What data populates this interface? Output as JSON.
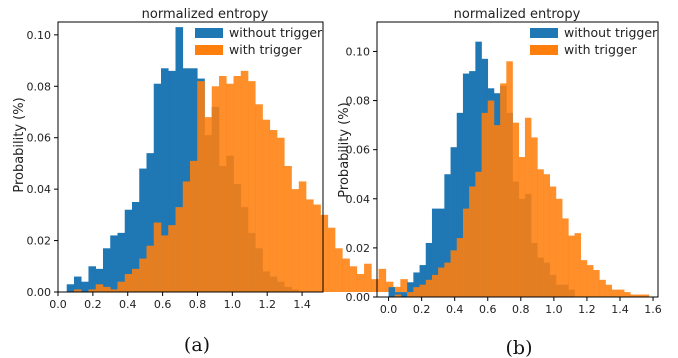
{
  "chart_data": [
    {
      "type": "histogram",
      "title": "normalized entropy",
      "xlabel": "",
      "ylabel": "Probability (%)",
      "xlim": [
        0.0,
        1.52
      ],
      "ylim": [
        0,
        0.105
      ],
      "xticks": [
        "0.0",
        "0.2",
        "0.4",
        "0.6",
        "0.8",
        "1.0",
        "1.2",
        "1.4"
      ],
      "xtick_values": [
        0.0,
        0.2,
        0.4,
        0.6,
        0.8,
        1.0,
        1.2,
        1.4
      ],
      "yticks": [
        "0.00",
        "0.02",
        "0.04",
        "0.06",
        "0.08",
        "0.10"
      ],
      "ytick_values": [
        0,
        0.02,
        0.04,
        0.06,
        0.08,
        0.1
      ],
      "legend_position": "top-right",
      "caption": "(a)",
      "series": [
        {
          "name": "without trigger",
          "color": "#1f77b4",
          "bin_start": 0.05,
          "bin_width": 0.0416,
          "values": [
            0.003,
            0.006,
            0.004,
            0.01,
            0.009,
            0.017,
            0.022,
            0.023,
            0.032,
            0.035,
            0.048,
            0.054,
            0.081,
            0.087,
            0.086,
            0.103,
            0.087,
            0.087,
            0.083,
            0.061,
            0.072,
            0.049,
            0.053,
            0.042,
            0.033,
            0.023,
            0.017,
            0.008,
            0.006,
            0.004,
            0.002,
            0.001
          ]
        },
        {
          "name": "with trigger",
          "color": "#ff7f0e",
          "bin_start": 0.05,
          "bin_width": 0.0416,
          "values": [
            0.0,
            0.001,
            0.0,
            0.001,
            0.003,
            0.002,
            0.001,
            0.004,
            0.007,
            0.009,
            0.013,
            0.018,
            0.027,
            0.022,
            0.026,
            0.033,
            0.043,
            0.051,
            0.082,
            0.068,
            0.08,
            0.084,
            0.081,
            0.084,
            0.086,
            0.082,
            0.073,
            0.067,
            0.063,
            0.06,
            0.049,
            0.04,
            0.043,
            0.036,
            0.034,
            0.03,
            0.025,
            0.017,
            0.013,
            0.01,
            0.007,
            0.011,
            0.005,
            0.009,
            0.004,
            0.002,
            0.005,
            0.003,
            0.0,
            0.003
          ]
        }
      ]
    },
    {
      "type": "histogram",
      "title": "normalized entropy",
      "xlabel": "",
      "ylabel": "Probability (%)",
      "xlim": [
        -0.07,
        1.63
      ],
      "ylim": [
        0,
        0.112
      ],
      "xticks": [
        "0.0",
        "0.2",
        "0.4",
        "0.6",
        "0.8",
        "1.0",
        "1.2",
        "1.4",
        "1.6"
      ],
      "xtick_values": [
        0.0,
        0.2,
        0.4,
        0.6,
        0.8,
        1.0,
        1.2,
        1.4,
        1.6
      ],
      "yticks": [
        "0.00",
        "0.02",
        "0.04",
        "0.06",
        "0.08",
        "0.10"
      ],
      "ytick_values": [
        0,
        0.02,
        0.04,
        0.06,
        0.08,
        0.1
      ],
      "legend_position": "top-right",
      "caption": "(b)",
      "series": [
        {
          "name": "without trigger",
          "color": "#1f77b4",
          "bin_start": 0.0,
          "bin_width": 0.0375,
          "values": [
            0.004,
            0.002,
            0.002,
            0.006,
            0.01,
            0.013,
            0.022,
            0.036,
            0.036,
            0.05,
            0.061,
            0.075,
            0.091,
            0.092,
            0.104,
            0.097,
            0.085,
            0.083,
            0.086,
            0.075,
            0.047,
            0.04,
            0.042,
            0.022,
            0.016,
            0.014,
            0.009,
            0.005,
            0.005,
            0.003
          ]
        },
        {
          "name": "with trigger",
          "color": "#ff7f0e",
          "bin_start": 0.0,
          "bin_width": 0.0375,
          "values": [
            0.0,
            0.001,
            0.0,
            0.002,
            0.004,
            0.005,
            0.007,
            0.009,
            0.012,
            0.014,
            0.019,
            0.024,
            0.036,
            0.045,
            0.051,
            0.075,
            0.08,
            0.07,
            0.087,
            0.096,
            0.071,
            0.057,
            0.073,
            0.065,
            0.052,
            0.05,
            0.045,
            0.04,
            0.032,
            0.025,
            0.026,
            0.015,
            0.013,
            0.011,
            0.007,
            0.005,
            0.003,
            0.003,
            0.002,
            0.001,
            0.001,
            0.001,
            0.0
          ]
        }
      ]
    }
  ]
}
